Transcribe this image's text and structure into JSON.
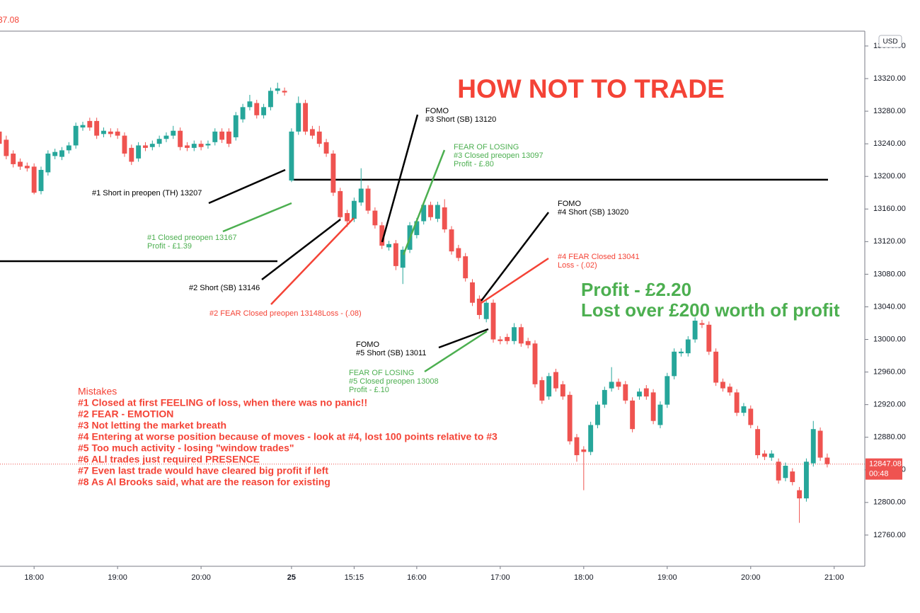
{
  "chart_data": {
    "type": "candlestick",
    "title": "HOW NOT TO TRADE",
    "header_fragment": "37.08",
    "currency": "USD",
    "up_color": "#26a69a",
    "down_color": "#ef5350",
    "xlim": [
      0.1,
      124.4
    ],
    "xticks": [
      {
        "value": 5,
        "label": "18:00"
      },
      {
        "value": 17,
        "label": "19:00"
      },
      {
        "value": 29,
        "label": "20:00"
      },
      {
        "value": 42,
        "label": "25"
      },
      {
        "value": 51,
        "label": "15:15"
      },
      {
        "value": 60,
        "label": "16:00"
      },
      {
        "value": 72,
        "label": "17:00"
      },
      {
        "value": 84,
        "label": "18:00"
      },
      {
        "value": 96,
        "label": "19:00"
      },
      {
        "value": 108,
        "label": "20:00"
      },
      {
        "value": 120,
        "label": "21:00"
      }
    ],
    "ylim": [
      12721.7,
      13378.2
    ],
    "yticks": [
      {
        "value": 12760,
        "label": "12760.00"
      },
      {
        "value": 12800,
        "label": "12800.00"
      },
      {
        "value": 12840,
        "label": "12840.00"
      },
      {
        "value": 12880,
        "label": "12880.00"
      },
      {
        "value": 12920,
        "label": "12920.00"
      },
      {
        "value": 12960,
        "label": "12960.00"
      },
      {
        "value": 13000,
        "label": "13000.00"
      },
      {
        "value": 13040,
        "label": "13040.00"
      },
      {
        "value": 13080,
        "label": "13080.00"
      },
      {
        "value": 13120,
        "label": "13120.00"
      },
      {
        "value": 13160,
        "label": "13160.00"
      },
      {
        "value": 13200,
        "label": "13200.00"
      },
      {
        "value": 13240,
        "label": "13240.00"
      },
      {
        "value": 13280,
        "label": "13280.00"
      },
      {
        "value": 13320,
        "label": "13320.00"
      },
      {
        "value": 13360,
        "label": "13360.00"
      }
    ],
    "open": [
      13255,
      13245,
      13228,
      13218,
      13213,
      13212,
      13182,
      13205,
      13225,
      13224,
      13232,
      13238,
      13260,
      13268,
      13268,
      13252,
      13255,
      13255,
      13250,
      13235,
      13222,
      13238,
      13236,
      13240,
      13246,
      13250,
      13256,
      13238,
      13235,
      13240,
      13238,
      13242,
      13255,
      13255,
      13248,
      13270,
      13285,
      13290,
      13275,
      13285,
      13305,
      13305,
      13195,
      13255,
      13290,
      13258,
      13255,
      13242,
      13228,
      13182,
      13155,
      13148,
      13168,
      13185,
      13158,
      13140,
      13113,
      13118,
      13088,
      13110,
      13128,
      13145,
      13165,
      13148,
      13162,
      13135,
      13112,
      13102,
      13070,
      13050,
      13025,
      13045,
      13000,
      13003,
      12998,
      13015,
      12998,
      12995,
      12950,
      12930,
      12960,
      12945,
      12932,
      12880,
      12865,
      12862,
      12895,
      12920,
      12940,
      12948,
      12945,
      12925,
      12930,
      12940,
      12935,
      12895,
      12920,
      12955,
      12983,
      12983,
      13000,
      13020,
      13018,
      12985,
      12948,
      12942,
      12935,
      12910,
      12915,
      12890,
      12860,
      12855,
      12850,
      12830,
      12838,
      12815,
      12805,
      12848,
      12888,
      12855
    ],
    "high": [
      13259,
      13250,
      13232,
      13222,
      13217,
      13216,
      13212,
      13232,
      13234,
      13236,
      13242,
      13266,
      13267,
      13272,
      13272,
      13260,
      13259,
      13259,
      13254,
      13239,
      13242,
      13242,
      13244,
      13250,
      13254,
      13262,
      13260,
      13242,
      13244,
      13244,
      13244,
      13259,
      13259,
      13259,
      13279,
      13289,
      13300,
      13294,
      13289,
      13309,
      13315,
      13309,
      13259,
      13298,
      13294,
      13262,
      13262,
      13246,
      13232,
      13186,
      13159,
      13174,
      13210,
      13189,
      13162,
      13144,
      13121,
      13122,
      13114,
      13144,
      13149,
      13169,
      13169,
      13169,
      13172,
      13139,
      13116,
      13106,
      13074,
      13054,
      13049,
      13049,
      13004,
      13007,
      13020,
      13019,
      13002,
      12999,
      12954,
      12959,
      12964,
      12949,
      12936,
      12884,
      12869,
      12899,
      12924,
      12942,
      12966,
      12952,
      12949,
      12929,
      12940,
      12944,
      12939,
      12924,
      12959,
      12989,
      12989,
      13004,
      13027,
      13024,
      13022,
      12989,
      12952,
      12946,
      12939,
      12922,
      12919,
      12894,
      12864,
      12864,
      12854,
      12849,
      12842,
      12819,
      12854,
      12900,
      12892,
      12860
    ],
    "low": [
      13236,
      13221,
      13211,
      13208,
      13206,
      13178,
      13178,
      13201,
      13221,
      13220,
      13228,
      13234,
      13256,
      13256,
      13246,
      13248,
      13248,
      13246,
      13224,
      13214,
      13218,
      13231,
      13232,
      13236,
      13242,
      13246,
      13232,
      13231,
      13231,
      13232,
      13234,
      13238,
      13241,
      13236,
      13244,
      13266,
      13281,
      13271,
      13271,
      13281,
      13301,
      13299,
      13193,
      13251,
      13251,
      13246,
      13236,
      13224,
      13176,
      13146,
      13138,
      13144,
      13164,
      13154,
      13136,
      13111,
      13109,
      13085,
      13068,
      13106,
      13124,
      13141,
      13146,
      13144,
      13131,
      13104,
      13096,
      13071,
      13041,
      13025,
      13021,
      12996,
      12994,
      12994,
      12994,
      12991,
      12989,
      12941,
      12921,
      12926,
      12936,
      12926,
      12871,
      12850,
      12815,
      12858,
      12891,
      12916,
      12936,
      12938,
      12921,
      12886,
      12926,
      12926,
      12896,
      12891,
      12916,
      12951,
      12979,
      12979,
      12996,
      13014,
      12981,
      12943,
      12936,
      12931,
      12906,
      12906,
      12891,
      12854,
      12852,
      12851,
      12823,
      12826,
      12821,
      12775,
      12801,
      12844,
      12851,
      12843
    ],
    "close": [
      13240,
      13225,
      13215,
      13212,
      13210,
      13180,
      13208,
      13228,
      13230,
      13232,
      13238,
      13262,
      13263,
      13260,
      13250,
      13256,
      13252,
      13250,
      13228,
      13218,
      13238,
      13235,
      13240,
      13246,
      13250,
      13256,
      13236,
      13235,
      13240,
      13236,
      13240,
      13255,
      13245,
      13240,
      13275,
      13285,
      13292,
      13275,
      13285,
      13305,
      13308,
      13303,
      13255,
      13290,
      13255,
      13250,
      13240,
      13228,
      13180,
      13150,
      13145,
      13170,
      13185,
      13158,
      13140,
      13115,
      13117,
      13090,
      13110,
      13140,
      13145,
      13165,
      13150,
      13165,
      13135,
      13108,
      13100,
      13075,
      13045,
      13030,
      13045,
      13000,
      12998,
      12998,
      13015,
      12995,
      12993,
      12945,
      12925,
      12955,
      12940,
      12930,
      12875,
      12858,
      12862,
      12895,
      12920,
      12938,
      12948,
      12942,
      12925,
      12890,
      12936,
      12930,
      12900,
      12920,
      12955,
      12985,
      12985,
      13000,
      13023,
      13018,
      12985,
      12947,
      12940,
      12935,
      12910,
      12918,
      12895,
      12858,
      12856,
      12860,
      12827,
      12845,
      12825,
      12805,
      12850,
      12890,
      12855,
      12847.08
    ],
    "levels": [
      13196,
      13096
    ],
    "last_price": 12847.08,
    "countdown": "00:48",
    "annotations": [
      {
        "color": "#000000",
        "lines": [
          "#1 Short in preopen (TH) 13207"
        ]
      },
      {
        "color": "#4caf50",
        "lines": [
          "#1 Closed preopen 13167",
          "Profit - £1.39"
        ]
      },
      {
        "color": "#000000",
        "lines": [
          "#2 Short (SB) 13146"
        ]
      },
      {
        "color": "#f44336",
        "lines": [
          "#2 FEAR Closed preopen 13148Loss - (.08)"
        ]
      },
      {
        "color": "#000000",
        "lines": [
          "FOMO",
          "#3 Short (SB) 13120"
        ]
      },
      {
        "color": "#4caf50",
        "lines": [
          "FEAR OF LOSING",
          "#3 Closed preopen 13097",
          "Profit - £.80"
        ]
      },
      {
        "color": "#000000",
        "lines": [
          "FOMO",
          "#4 Short (SB) 13020"
        ]
      },
      {
        "color": "#f44336",
        "lines": [
          "#4 FEAR Closed 13041",
          "Loss - (.02)"
        ]
      },
      {
        "color": "#000000",
        "lines": [
          "FOMO",
          "#5 Short (SB) 13011"
        ]
      },
      {
        "color": "#4caf50",
        "lines": [
          "FEAR OF LOSING",
          "#5 Closed preopen 13008",
          "Profit - £.10"
        ]
      }
    ],
    "summary": {
      "color": "#4caf50",
      "lines": [
        "Profit - £2.20",
        "Lost over £200 worth of profit"
      ]
    },
    "mistakes": {
      "color": "#f44336",
      "title": "Mistakes",
      "items": [
        "#1  Closed at first FEELING of loss, when there was no panic!!",
        "#2  FEAR - EMOTION",
        "#3  Not letting the market breath",
        "#4  Entering at worse position because of moves - look at #4, lost 100 points relative to #3",
        "#5  Too much activity - losing \"window trades\"",
        "#6  ALl trades just required PRESENCE",
        "#7  Even last trade would have cleared big profit if left",
        "#8  As Al Brooks said, what are the reason for existing"
      ]
    }
  }
}
